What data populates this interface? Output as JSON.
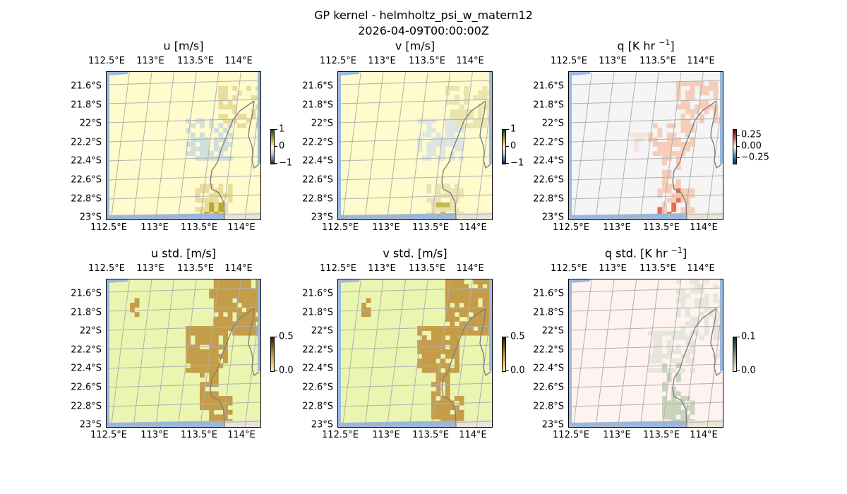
{
  "figure": {
    "title": "GP kernel - helmholtz_psi_w_matern12",
    "subtitle": "2026-04-09T00:00:00Z"
  },
  "axes_ticks": {
    "lon": [
      "112.5°E",
      "113°E",
      "113.5°E",
      "114°E"
    ],
    "lat": [
      "21.6°S",
      "21.8°S",
      "22°S",
      "22.2°S",
      "22.4°S",
      "22.6°S",
      "22.8°S",
      "23°S"
    ]
  },
  "panels": [
    {
      "id": "u",
      "title": "u [m/s]",
      "title_sup": "",
      "title_end": "",
      "colorbar_ticks": [
        "1",
        "0",
        "−1"
      ],
      "colormap": "diverging green-yellow-blue",
      "colors": {
        "background": "#fffbcc",
        "cluster": "#e9dc9c",
        "cluster_dark": "#b8a830",
        "cluster_neg": "#cfdfdc"
      }
    },
    {
      "id": "v",
      "title": "v [m/s]",
      "title_sup": "",
      "title_end": "",
      "colorbar_ticks": [
        "1",
        "0",
        "−1"
      ],
      "colormap": "diverging green-yellow-blue",
      "colors": {
        "background": "#fffbcc",
        "cluster": "#ebe3b0",
        "cluster_dark": "#c8b850",
        "cluster_neg": "#dde6e2"
      }
    },
    {
      "id": "q",
      "title": "q [K hr ",
      "title_sup": "−1",
      "title_end": "]",
      "colorbar_ticks": [
        "0.25",
        "0.00",
        "−0.25"
      ],
      "colormap": "RdBu_r",
      "colors": {
        "background": "#f5f5f5",
        "cluster": "#f6cdb8",
        "cluster_dark": "#e07050",
        "cluster_neg": "#f3e4dc"
      }
    },
    {
      "id": "u_std",
      "title": "u std. [m/s]",
      "title_sup": "",
      "title_end": "",
      "colorbar_ticks": [
        "0.5",
        "0.0"
      ],
      "colormap": "sequential brown",
      "colors": {
        "background": "#eaf5b0",
        "cluster": "#c59c48",
        "cluster_dark": "#b88c3c",
        "cluster_neg": "#d8c070"
      }
    },
    {
      "id": "v_std",
      "title": "v std. [m/s]",
      "title_sup": "",
      "title_end": "",
      "colorbar_ticks": [
        "0.5",
        "0.0"
      ],
      "colormap": "sequential brown",
      "colors": {
        "background": "#eaf5b0",
        "cluster": "#c59c48",
        "cluster_dark": "#b88c3c",
        "cluster_neg": "#d8c070"
      }
    },
    {
      "id": "q_std",
      "title": "q std. [K hr ",
      "title_sup": "−1",
      "title_end": "]",
      "colorbar_ticks": [
        "0.1",
        "0.0"
      ],
      "colormap": "sequential teal",
      "colors": {
        "background": "#fff3f0",
        "cluster": "#e6e6dc",
        "cluster_dark": "#c8d4bc",
        "cluster_neg": "#ecece4"
      }
    }
  ],
  "map_colors": {
    "ocean_edge": "#9ab8e0",
    "land": "#e8e4d8",
    "coastline": "#808080",
    "grid": "#b0b0b0"
  }
}
